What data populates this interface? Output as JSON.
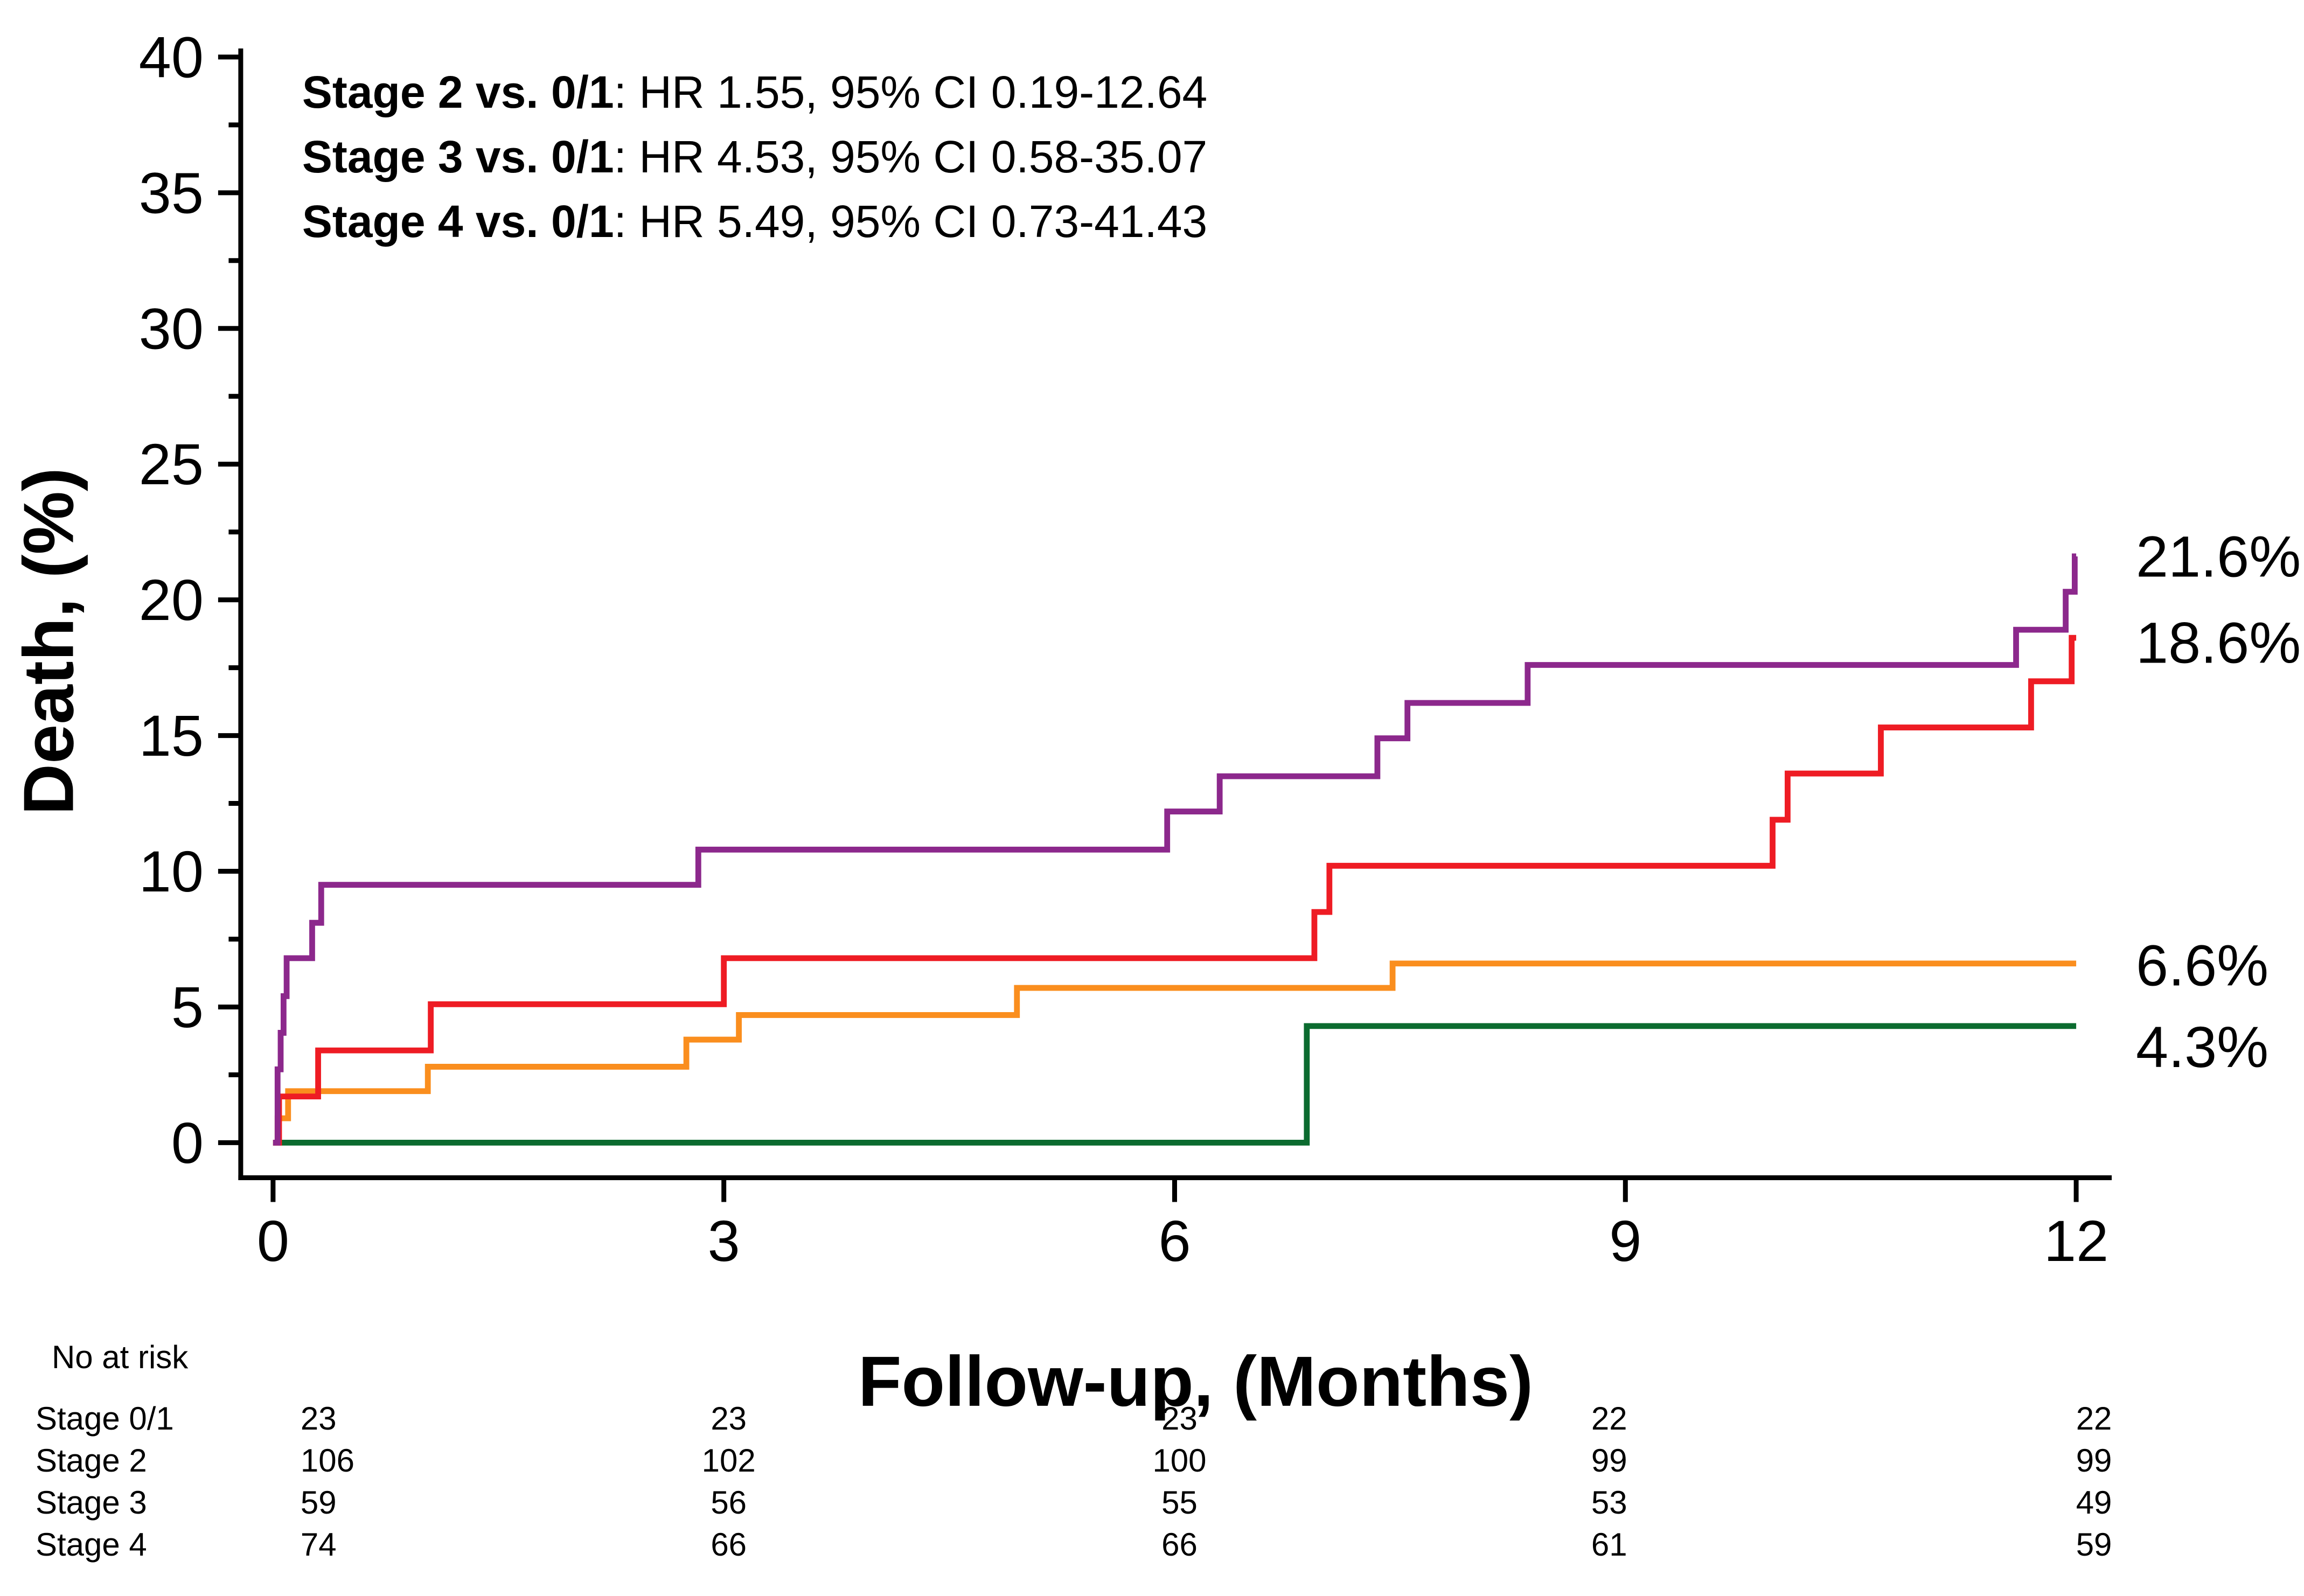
{
  "chart_data": {
    "type": "line",
    "subtype": "kaplan-meier-step",
    "title": "",
    "xlabel": "Follow-up, (Months)",
    "ylabel": "Death, (%)",
    "xlim": [
      0,
      12
    ],
    "ylim": [
      0,
      40
    ],
    "x_ticks": [
      0,
      3,
      6,
      9,
      12
    ],
    "y_ticks": [
      0,
      5,
      10,
      15,
      20,
      25,
      30,
      35,
      40
    ],
    "y_minor_ticks": [
      2.5,
      7.5,
      12.5,
      17.5,
      22.5,
      27.5,
      32.5,
      37.5
    ],
    "grid": "off",
    "legend_position": "none",
    "annotations": [
      {
        "bold": "Stage 2 vs. 0/1",
        "rest": ": HR 1.55, 95% CI 0.19-12.64"
      },
      {
        "bold": "Stage 3 vs. 0/1",
        "rest": ": HR 4.53, 95% CI 0.58-35.07"
      },
      {
        "bold": "Stage 4 vs. 0/1",
        "rest": ": HR 5.49, 95% CI 0.73-41.43"
      }
    ],
    "series": [
      {
        "name": "Stage 0/1",
        "color": "#0B6B2F",
        "end_label": "4.3%",
        "final_value": 4.3,
        "steps": [
          [
            6.88,
            4.3
          ]
        ]
      },
      {
        "name": "Stage 2",
        "color": "#FA8E1E",
        "end_label": "6.6%",
        "final_value": 6.6,
        "steps": [
          [
            0.03,
            0.9
          ],
          [
            0.1,
            1.9
          ],
          [
            1.03,
            2.8
          ],
          [
            2.75,
            3.8
          ],
          [
            3.1,
            4.7
          ],
          [
            4.95,
            5.7
          ],
          [
            7.45,
            6.6
          ]
        ]
      },
      {
        "name": "Stage 3",
        "color": "#EE1C24",
        "end_label": "18.6%",
        "final_value": 18.6,
        "steps": [
          [
            0.04,
            1.7
          ],
          [
            0.3,
            3.4
          ],
          [
            1.05,
            5.1
          ],
          [
            3.0,
            6.8
          ],
          [
            6.93,
            8.5
          ],
          [
            7.03,
            10.2
          ],
          [
            9.98,
            11.9
          ],
          [
            10.08,
            13.6
          ],
          [
            10.7,
            15.3
          ],
          [
            11.7,
            17.0
          ],
          [
            11.97,
            18.6
          ]
        ]
      },
      {
        "name": "Stage 4",
        "color": "#8C288C",
        "end_label": "21.6%",
        "final_value": 21.6,
        "steps": [
          [
            0.03,
            2.7
          ],
          [
            0.05,
            4.05
          ],
          [
            0.07,
            5.4
          ],
          [
            0.09,
            6.8
          ],
          [
            0.26,
            8.1
          ],
          [
            0.32,
            9.5
          ],
          [
            2.83,
            10.8
          ],
          [
            5.95,
            12.2
          ],
          [
            6.3,
            13.5
          ],
          [
            7.35,
            14.9
          ],
          [
            7.55,
            16.2
          ],
          [
            8.35,
            17.6
          ],
          [
            11.6,
            18.9
          ],
          [
            11.93,
            20.3
          ],
          [
            11.99,
            21.6
          ]
        ]
      }
    ]
  },
  "risk_table": {
    "title": "No at risk",
    "time_points": [
      0,
      3,
      6,
      9,
      12
    ],
    "rows": [
      {
        "label": "Stage 0/1",
        "values": [
          23,
          23,
          23,
          22,
          22
        ]
      },
      {
        "label": "Stage 2",
        "values": [
          106,
          102,
          100,
          99,
          99
        ]
      },
      {
        "label": "Stage 3",
        "values": [
          59,
          56,
          55,
          53,
          49
        ]
      },
      {
        "label": "Stage 4",
        "values": [
          74,
          66,
          66,
          61,
          59
        ]
      }
    ]
  }
}
